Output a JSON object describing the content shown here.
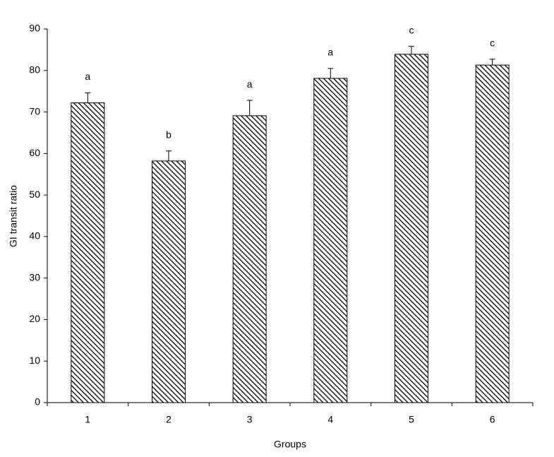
{
  "chart_data": {
    "type": "bar",
    "y_label": "GI transit ratio",
    "x_label": "Groups",
    "categories": [
      "1",
      "2",
      "3",
      "4",
      "5",
      "6"
    ],
    "values": [
      72.2,
      58.2,
      69.1,
      78.1,
      83.9,
      81.3
    ],
    "errors": [
      2.4,
      2.4,
      3.7,
      2.4,
      1.9,
      1.4
    ],
    "significance_labels": [
      "a",
      "b",
      "a",
      "a",
      "c",
      "c"
    ],
    "color": "#000000",
    "fill_pattern": "diagonal-hatch",
    "ylim": [
      0,
      90
    ],
    "yticks": [
      0,
      10,
      20,
      30,
      40,
      50,
      60,
      70,
      80,
      90
    ],
    "grid": false
  }
}
